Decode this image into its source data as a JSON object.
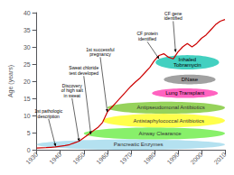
{
  "chart_data": {
    "type": "line",
    "ylabel": "Age (years)",
    "x": [
      1930,
      1932,
      1934,
      1936,
      1938,
      1940,
      1942,
      1944,
      1946,
      1948,
      1950,
      1952,
      1954,
      1956,
      1958,
      1960,
      1962,
      1964,
      1966,
      1968,
      1970,
      1972,
      1974,
      1976,
      1978,
      1980,
      1982,
      1984,
      1986,
      1988,
      1990,
      1992,
      1994,
      1996,
      1998,
      2000,
      2002,
      2004,
      2006,
      2008,
      2010
    ],
    "values": [
      0.5,
      0.55,
      0.6,
      0.7,
      0.8,
      1.0,
      1.2,
      1.5,
      2.0,
      2.5,
      3.5,
      4.5,
      5.5,
      6.5,
      8.0,
      11.0,
      12.5,
      14.0,
      15.5,
      17.0,
      18.5,
      19.8,
      21.0,
      22.5,
      24.0,
      26.0,
      27.5,
      28.0,
      27.0,
      26.5,
      28.5,
      30.0,
      31.0,
      30.0,
      31.0,
      32.5,
      33.5,
      35.0,
      36.5,
      37.5,
      38.0
    ],
    "color": "#cc0000",
    "xlim": [
      1930,
      2010
    ],
    "ylim": [
      0,
      40
    ],
    "xticks": [
      1930,
      1940,
      1950,
      1960,
      1970,
      1980,
      1990,
      2000,
      2010
    ],
    "yticks": [
      0,
      5,
      10,
      15,
      20,
      25,
      30,
      35,
      40
    ],
    "grid": false,
    "bands": [
      {
        "label": "Pancreatic Enzymes",
        "x0": 1930,
        "x1": 2010,
        "y0": 0.0,
        "y1": 3.0,
        "color": "#aaddee"
      },
      {
        "label": "Airway Clearance",
        "x0": 1950,
        "x1": 2010,
        "y0": 3.0,
        "y1": 6.5,
        "color": "#77ee55"
      },
      {
        "label": "Antistaphylococcal Antibiotics",
        "x0": 1958,
        "x1": 2010,
        "y0": 6.5,
        "y1": 10.5,
        "color": "#ffff33"
      },
      {
        "label": "Antipseudomonal Antibiotics",
        "x0": 1960,
        "x1": 2010,
        "y0": 10.5,
        "y1": 14.0,
        "color": "#88cc44"
      }
    ],
    "ellipses": [
      {
        "label": "Lung Transplant",
        "x": 1993,
        "y": 16.5,
        "width": 28,
        "height": 2.8,
        "color": "#ff55bb"
      },
      {
        "label": "DNase",
        "x": 1995,
        "y": 20.5,
        "width": 22,
        "height": 2.8,
        "color": "#999999"
      },
      {
        "label": "Inhaled\nTobramycin",
        "x": 1994,
        "y": 25.5,
        "width": 27,
        "height": 4.2,
        "color": "#33ccbb"
      }
    ],
    "annotations": [
      {
        "text": "1st pathologic\ndescription",
        "x": 1938,
        "y": 1.0,
        "text_x": 1935,
        "text_y": 9.0
      },
      {
        "text": "Discovery\nof high salt\nin sweat",
        "x": 1948,
        "y": 2.5,
        "text_x": 1945,
        "text_y": 15.0
      },
      {
        "text": "Sweat chloride\ntest developed",
        "x": 1953,
        "y": 4.5,
        "text_x": 1950,
        "text_y": 21.5
      },
      {
        "text": "1st successful\npregnancy",
        "x": 1960,
        "y": 11.0,
        "text_x": 1957,
        "text_y": 27.0
      },
      {
        "text": "CF protein\nidentified",
        "x": 1982,
        "y": 26.5,
        "text_x": 1977,
        "text_y": 31.5
      },
      {
        "text": "CF gene\nidentified",
        "x": 1989,
        "y": 28.5,
        "text_x": 1988,
        "text_y": 37.5
      }
    ]
  }
}
